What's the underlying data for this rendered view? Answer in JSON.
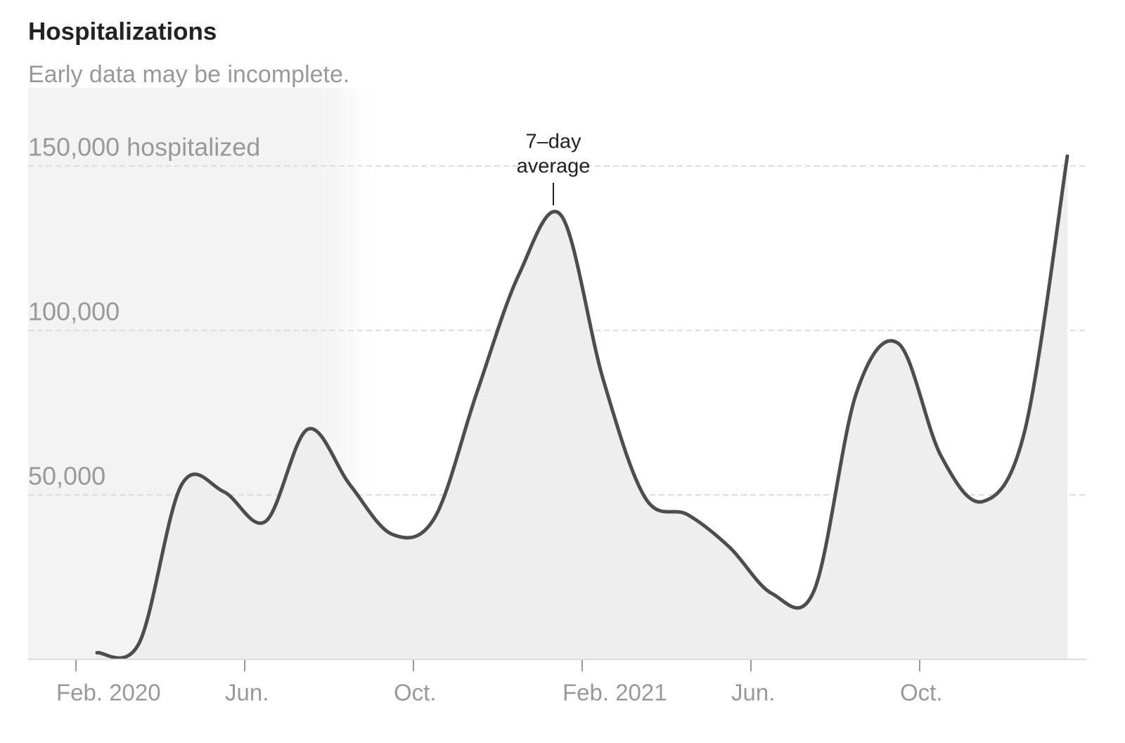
{
  "chart_data": {
    "type": "line",
    "title": "Hospitalizations",
    "subtitle": "Early data may be incomplete.",
    "annotation": [
      "7–day",
      "average"
    ],
    "x": [
      "2020-02",
      "2020-03",
      "2020-04",
      "2020-05",
      "2020-06",
      "2020-07",
      "2020-08",
      "2020-09",
      "2020-10",
      "2020-11",
      "2020-12",
      "2021-01",
      "2021-02",
      "2021-03",
      "2021-04",
      "2021-05",
      "2021-06",
      "2021-07",
      "2021-08",
      "2021-09",
      "2021-10",
      "2021-11",
      "2021-12",
      "2022-01"
    ],
    "series": [
      {
        "color": "#4d4d4d",
        "fill": "#eeeeee",
        "values": [
          2000,
          5000,
          53000,
          51000,
          42000,
          70000,
          53000,
          38000,
          43000,
          81000,
          117000,
          135000,
          85000,
          49000,
          44000,
          34000,
          20000,
          21000,
          81000,
          96000,
          62000,
          48000,
          70000,
          153000
        ]
      }
    ],
    "xlim": [
      "2020-01",
      "2022-02"
    ],
    "xticks": [
      {
        "value": "2020-02",
        "label": "Feb. 2020"
      },
      {
        "value": "2020-06",
        "label": "Jun."
      },
      {
        "value": "2020-10",
        "label": "Oct."
      },
      {
        "value": "2021-02",
        "label": "Feb. 2021"
      },
      {
        "value": "2021-06",
        "label": "Jun."
      },
      {
        "value": "2021-10",
        "label": "Oct."
      }
    ],
    "ylim": [
      0,
      165000
    ],
    "yticks": [
      {
        "value": 50000,
        "label": "50,000"
      },
      {
        "value": 100000,
        "label": "100,000"
      },
      {
        "value": 150000,
        "label": "150,000 hospitalized"
      }
    ],
    "grid": true
  }
}
